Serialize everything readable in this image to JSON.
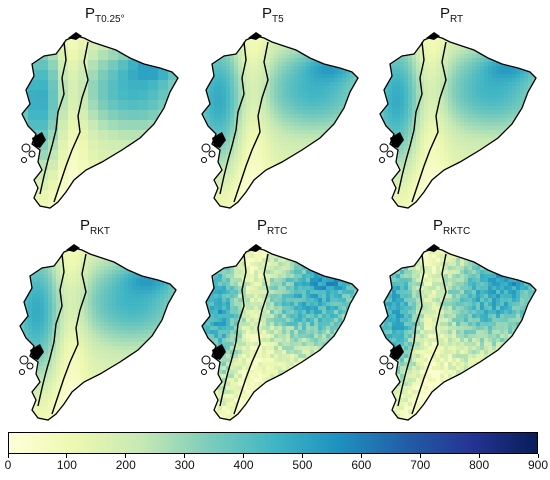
{
  "panels": [
    {
      "id": "p1",
      "base": "P",
      "sub": "T0.25°",
      "style": "coarse",
      "seed": 3
    },
    {
      "id": "p2",
      "base": "P",
      "sub": "T5",
      "style": "smooth",
      "seed": 7
    },
    {
      "id": "p3",
      "base": "P",
      "sub": "RT",
      "style": "smooth",
      "seed": 11
    },
    {
      "id": "p4",
      "base": "P",
      "sub": "RKT",
      "style": "smooth",
      "seed": 13
    },
    {
      "id": "p5",
      "base": "P",
      "sub": "RTC",
      "style": "speckled",
      "seed": 17
    },
    {
      "id": "p6",
      "base": "P",
      "sub": "RKTC",
      "style": "speckled",
      "seed": 19
    }
  ],
  "colorbar": {
    "min": 0,
    "max": 900,
    "ticks": [
      "0",
      "100",
      "200",
      "300",
      "400",
      "500",
      "600",
      "700",
      "800",
      "900"
    ],
    "colors": [
      "#ffffd9",
      "#edf8b1",
      "#c7e9b4",
      "#7fcdbb",
      "#41b6c4",
      "#1d91c0",
      "#225ea8",
      "#253494",
      "#081d58"
    ]
  }
}
